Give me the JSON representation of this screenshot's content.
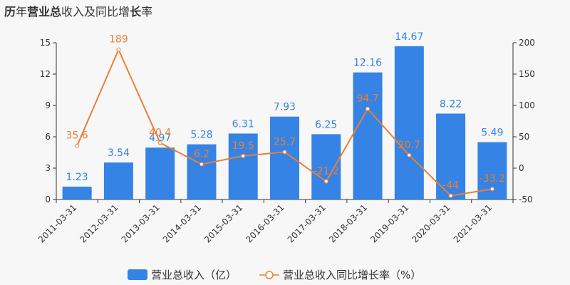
{
  "title": {
    "parts": [
      {
        "text": "历",
        "bold": true
      },
      {
        "text": "年",
        "bold": false
      },
      {
        "text": "营业总",
        "bold": true
      },
      {
        "text": "收入及同比增",
        "bold": false
      },
      {
        "text": "长",
        "bold": true
      },
      {
        "text": "率",
        "bold": false
      }
    ]
  },
  "legend": {
    "bar_label": "营业总收入（亿）",
    "line_label": "营业总收入同比增长率（%）"
  },
  "colors": {
    "bar": "#3583e4",
    "line": "#ec7f35",
    "axis": "#333333",
    "background": "#f7f7f7"
  },
  "chart_data": {
    "type": "bar",
    "categories": [
      "2011-03-31",
      "2012-03-31",
      "2013-03-31",
      "2014-03-31",
      "2015-03-31",
      "2016-03-31",
      "2017-03-31",
      "2018-03-31",
      "2019-03-31",
      "2020-03-31",
      "2021-03-31"
    ],
    "series": [
      {
        "name": "营业总收入（亿）",
        "type": "bar",
        "axis": "left",
        "values": [
          1.23,
          3.54,
          4.97,
          5.28,
          6.31,
          7.93,
          6.25,
          12.16,
          14.67,
          8.22,
          5.49
        ],
        "labels": [
          "1.23",
          "3.54",
          "4.97",
          "5.28",
          "6.31",
          "7.93",
          "6.25",
          "12.16",
          "14.67",
          "8.22",
          "5.49"
        ]
      },
      {
        "name": "营业总收入同比增长率（%）",
        "type": "line",
        "axis": "right",
        "values": [
          35.6,
          189,
          40.4,
          6.2,
          19.5,
          25.7,
          -21.2,
          94.7,
          20.7,
          -44,
          -33.2
        ],
        "labels": [
          "35.6",
          "189",
          "40.4",
          "6.2",
          "19.5",
          "25.7",
          "-21.2",
          "94.7",
          "20.7",
          "-44",
          "-33.2"
        ]
      }
    ],
    "y_left": {
      "ylim": [
        0,
        15
      ],
      "ticks": [
        "0",
        "3",
        "6",
        "9",
        "12",
        "15"
      ]
    },
    "y_right": {
      "ylim": [
        -50,
        200
      ],
      "ticks": [
        "-50",
        "0",
        "50",
        "100",
        "150",
        "200"
      ]
    },
    "grid": false,
    "legend_position": "bottom-center"
  }
}
